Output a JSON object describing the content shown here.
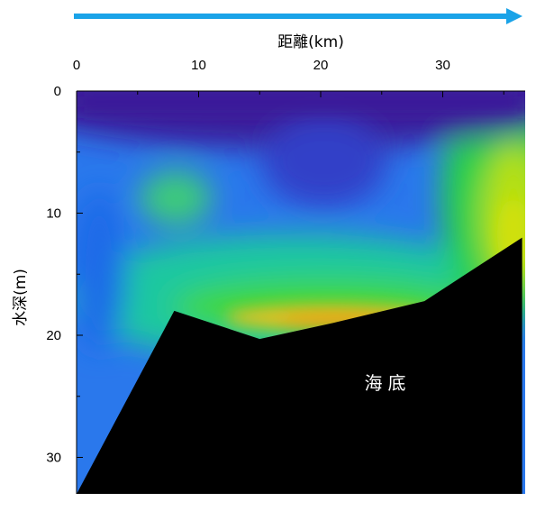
{
  "chart_data": {
    "type": "heatmap",
    "title": "",
    "xlabel": "距離(km)",
    "ylabel": "水深(m)",
    "xlim": [
      0,
      36.5
    ],
    "ylim": [
      0,
      33
    ],
    "x_ticks": [
      "0",
      "10",
      "20",
      "30"
    ],
    "y_ticks": [
      "0",
      "10",
      "20",
      "30"
    ],
    "x_axis_position": "top",
    "y_axis_inverted": true,
    "grid": false,
    "direction_arrow": "right",
    "seafloor": {
      "x": [
        0,
        8,
        15,
        21,
        28.5,
        36.5
      ],
      "depth": [
        33,
        18,
        20.3,
        19,
        17.2,
        12
      ]
    },
    "annotations": [
      {
        "text": "海底",
        "x": 25.5,
        "depth": 24
      }
    ],
    "colors": {
      "deep_blue": "#3a1a9a",
      "blue": "#2a7af0",
      "cyan": "#20c0c8",
      "green": "#30d040",
      "yellow_green": "#b8e010",
      "orange": "#f0a010",
      "seafloor": "#000000",
      "arrow": "#1aa3e8"
    }
  }
}
